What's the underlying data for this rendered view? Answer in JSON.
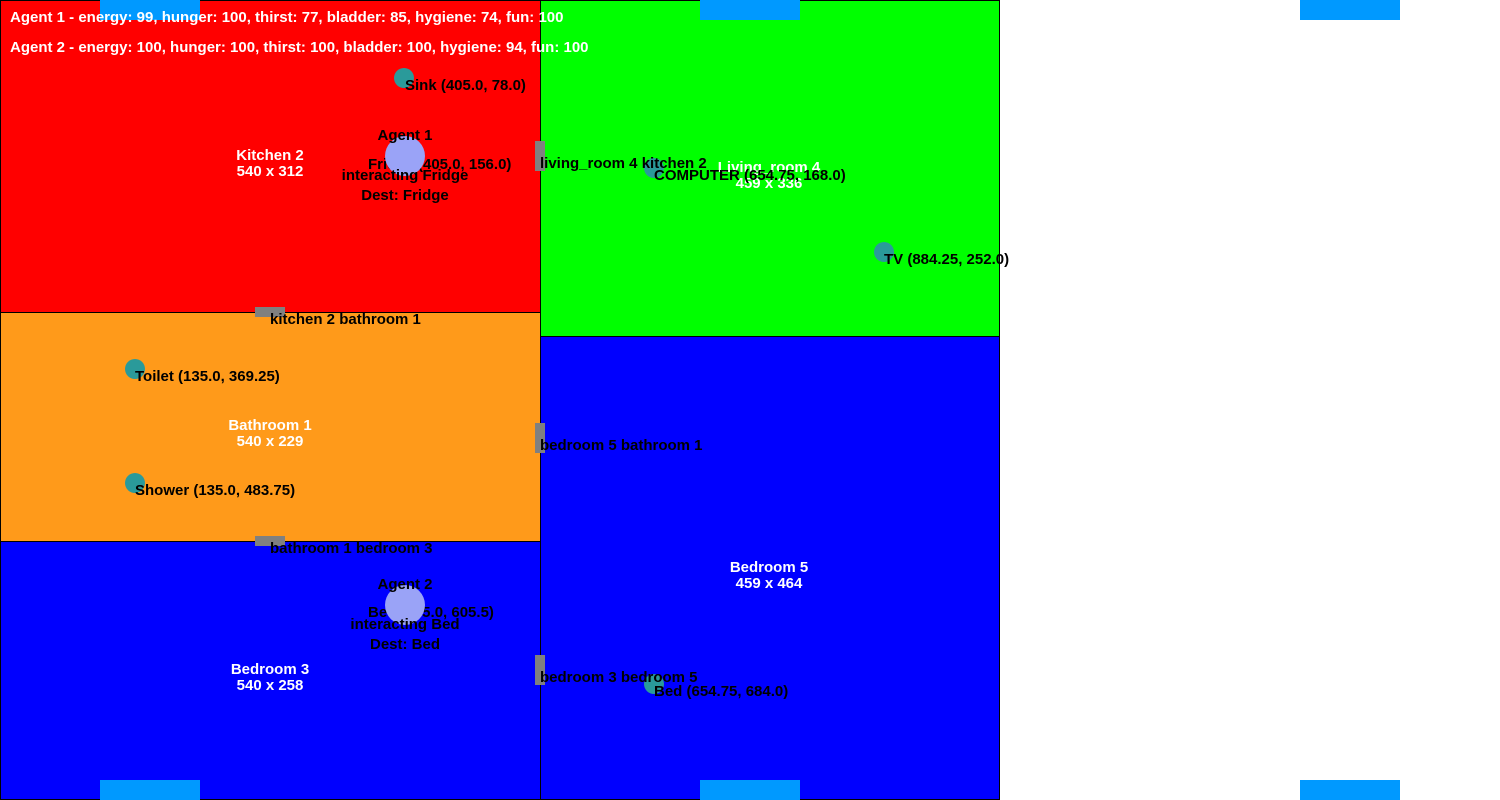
{
  "status": {
    "agent1": "Agent 1 - energy: 99, hunger: 100, thirst: 77, bladder: 85, hygiene: 74, fun: 100",
    "agent2": "Agent 2 - energy: 100, hunger: 100, thirst: 100, bladder: 100, hygiene: 94, fun: 100"
  },
  "rooms": {
    "kitchen": {
      "name": "Kitchen 2",
      "size": "540 x 312",
      "color": "#ff0000"
    },
    "living": {
      "name": "Living_room 4",
      "size": "459 x 336",
      "color": "#00ff00"
    },
    "bathroom": {
      "name": "Bathroom 1",
      "size": "540 x 229",
      "color": "#ff9a1a"
    },
    "bedroom3": {
      "name": "Bedroom 3",
      "size": "540 x 258",
      "color": "#0000ff"
    },
    "bedroom5": {
      "name": "Bedroom 5",
      "size": "459 x 464",
      "color": "#0000ff"
    }
  },
  "doors": {
    "kitchen_bathroom": "kitchen 2 bathroom 1",
    "living_kitchen": "living_room 4 kitchen 2",
    "bedroom5_bathroom": "bedroom 5 bathroom 1",
    "bathroom_bedroom3": "bathroom 1 bedroom 3",
    "bedroom3_bedroom5": "bedroom 3 bedroom 5"
  },
  "objects": {
    "sink": "Sink (405.0, 78.0)",
    "fridge": "Fridge (405.0, 156.0)",
    "computer": "COMPUTER (654.75, 168.0)",
    "tv": "TV (884.25, 252.0)",
    "toilet": "Toilet (135.0, 369.25)",
    "shower": "Shower (135.0, 483.75)",
    "bed3": "Bed (405.0, 605.5)",
    "bed5": "Bed (654.75, 684.0)"
  },
  "agents": {
    "agent1": {
      "name": "Agent 1",
      "action": "interacting Fridge",
      "dest": "Dest: Fridge"
    },
    "agent2": {
      "name": "Agent 2",
      "action": "interacting Bed",
      "dest": "Dest: Bed"
    }
  },
  "colors": {
    "door": "#808080",
    "object": "#2a9a9a",
    "agent": "#9aa3f7",
    "tab": "#0099ff"
  }
}
